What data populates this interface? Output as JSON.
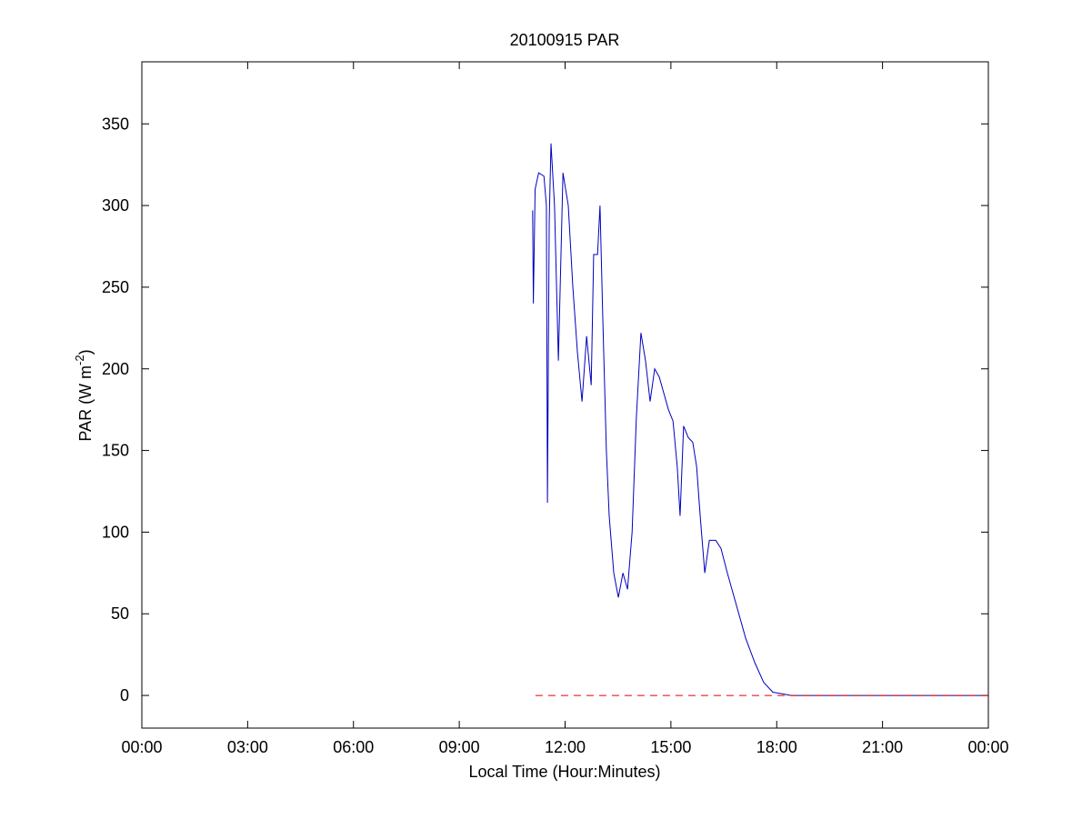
{
  "chart_data": {
    "type": "line",
    "title": "20100915 PAR",
    "xlabel": "Local Time (Hour:Minutes)",
    "ylabel": [
      "PAR (W m",
      "-2",
      ")"
    ],
    "xlim": [
      0,
      24
    ],
    "ylim": [
      -20,
      388
    ],
    "xticks": [
      {
        "value": 0,
        "label": "00:00"
      },
      {
        "value": 3,
        "label": "03:00"
      },
      {
        "value": 6,
        "label": "06:00"
      },
      {
        "value": 9,
        "label": "09:00"
      },
      {
        "value": 12,
        "label": "12:00"
      },
      {
        "value": 15,
        "label": "15:00"
      },
      {
        "value": 18,
        "label": "18:00"
      },
      {
        "value": 21,
        "label": "21:00"
      },
      {
        "value": 24,
        "label": "00:00"
      }
    ],
    "yticks": [
      0,
      50,
      100,
      150,
      200,
      250,
      300,
      350
    ],
    "series": [
      {
        "color": "#0000c0",
        "dash": false,
        "x": [
          11.08,
          11.1,
          11.15,
          11.25,
          11.4,
          11.47,
          11.5,
          11.55,
          11.6,
          11.7,
          11.81,
          11.94,
          12.09,
          12.22,
          12.35,
          12.48,
          12.61,
          12.74,
          12.81,
          12.92,
          12.99,
          13.07,
          13.17,
          13.25,
          13.38,
          13.51,
          13.64,
          13.77,
          13.9,
          14.02,
          14.15,
          14.28,
          14.41,
          14.54,
          14.67,
          14.8,
          14.93,
          15.06,
          15.18,
          15.26,
          15.36,
          15.49,
          15.62,
          15.73,
          15.83,
          15.96,
          16.09,
          16.27,
          16.42,
          16.6,
          16.86,
          17.12,
          17.38,
          17.63,
          17.89,
          18.15,
          18.41,
          24.0
        ],
        "values": [
          297,
          240,
          310,
          320,
          318,
          300,
          118,
          290,
          338,
          300,
          205,
          320,
          300,
          250,
          210,
          180,
          220,
          190,
          270,
          270,
          300,
          230,
          150,
          110,
          75,
          60,
          75,
          65,
          100,
          170,
          222,
          205,
          180,
          200,
          195,
          185,
          175,
          168,
          140,
          110,
          165,
          158,
          155,
          140,
          110,
          75,
          95,
          95,
          90,
          75,
          55,
          35,
          20,
          8,
          2,
          1,
          0,
          0
        ]
      },
      {
        "color": "#e00000",
        "dash": true,
        "x": [
          11.16,
          24.0
        ],
        "values": [
          0,
          0
        ]
      }
    ]
  }
}
